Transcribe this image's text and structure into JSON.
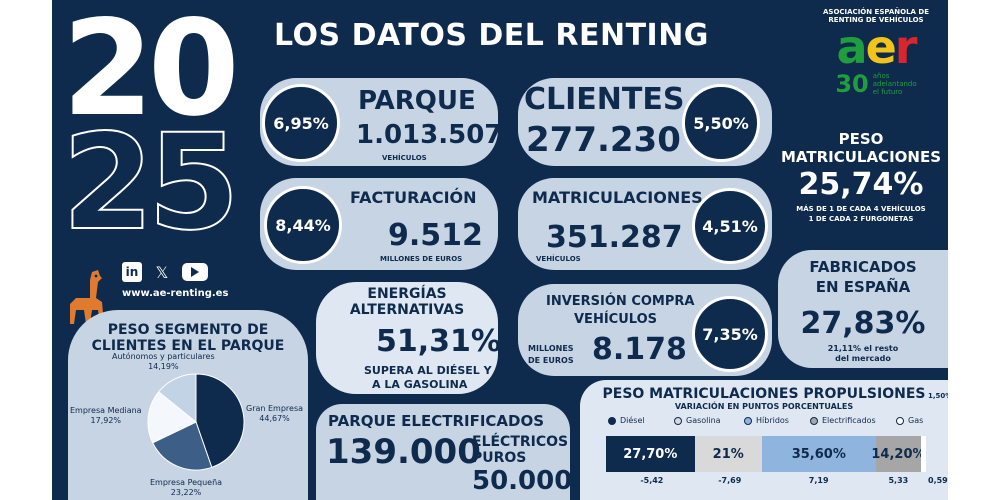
{
  "year_top": "20",
  "year_bottom": "25",
  "title": "LOS DATOS DEL RENTING",
  "logo": {
    "assoc_line1": "ASOCIACIÓN ESPAÑOLA DE",
    "assoc_line2": "RENTING DE VEHÍCULOS",
    "acronym": "aer",
    "anniv_number": "30",
    "anniv_text1": "años",
    "anniv_text2": "adelantando",
    "anniv_text3": "el futuro",
    "colors": {
      "a": "#1f9e3e",
      "e": "#f2c419",
      "r": "#d9262c"
    }
  },
  "social": {
    "icons": [
      "linkedin-icon",
      "x-icon",
      "youtube-icon"
    ],
    "linkedin": "in",
    "x": "𝕏",
    "website": "www.ae-renting.es"
  },
  "parque": {
    "label": "PARQUE",
    "value": "1.013.507",
    "unit": "VEHÍCULOS",
    "pct": "6,95%"
  },
  "clientes": {
    "label": "CLIENTES",
    "value": "277.230",
    "pct": "5,50%"
  },
  "facturacion": {
    "label": "FACTURACIÓN",
    "value": "9.512",
    "unit": "MILLONES DE EUROS",
    "pct": "8,44%"
  },
  "matriculaciones": {
    "label": "MATRICULACIONES",
    "value": "351.287",
    "unit": "VEHÍCULOS",
    "pct": "4,51%"
  },
  "peso_matric": {
    "label1": "PESO",
    "label2": "MATRICULACIONES",
    "value": "25,74%",
    "note1": "MÁS DE 1 DE CADA 4 VEHÍCULOS",
    "note2": "1 DE CADA 2 FURGONETAS"
  },
  "energias": {
    "label1": "ENERGÍAS",
    "label2": "ALTERNATIVAS",
    "value": "51,31%",
    "note1": "SUPERA AL DIÉSEL Y",
    "note2": "A LA GASOLINA"
  },
  "inversion": {
    "label1": "INVERSIÓN COMPRA",
    "label2": "VEHÍCULOS",
    "unit1": "MILLONES",
    "unit2": "DE EUROS",
    "value": "8.178",
    "pct": "7,35%"
  },
  "fabricados": {
    "label1": "FABRICADOS",
    "label2": "EN ESPAÑA",
    "value": "27,83%",
    "note1": "21,11% el resto",
    "note2": "del mercado"
  },
  "segmento": {
    "title1": "PESO SEGMENTO DE",
    "title2": "CLIENTES EN EL PARQUE",
    "slices": [
      {
        "name": "Gran Empresa",
        "pct": "44,67%",
        "value": 44.67,
        "color": "#0e2a4c"
      },
      {
        "name": "Empresa Pequeña",
        "pct": "23,22%",
        "value": 23.22,
        "color": "#3d5e86"
      },
      {
        "name": "Empresa Mediana",
        "pct": "17,92%",
        "value": 17.92,
        "color": "#f4f7fb"
      },
      {
        "name": "Autónomos y particulares",
        "pct": "14,19%",
        "value": 14.19,
        "color": "#c2d3e6"
      }
    ]
  },
  "electrificados": {
    "label": "PARQUE ELECTRIFICADOS",
    "value": "139.000",
    "sub1": "ELÉCTRICOS",
    "sub2": "PUROS",
    "sub_value": "50.000"
  },
  "propulsiones": {
    "title": "PESO MATRICULACIONES PROPULSIONES",
    "subtitle": "VARIACIÓN EN PUNTOS PORCENTUALES",
    "legend": [
      {
        "name": "Diésel",
        "color": "#0e2a4c"
      },
      {
        "name": "Gasolina",
        "color": "#d9d9d9"
      },
      {
        "name": "Híbridos",
        "color": "#8fb4de"
      },
      {
        "name": "Electrificados",
        "color": "#a6a6a6"
      },
      {
        "name": "Gas",
        "color": "#ffffff"
      }
    ],
    "segments": [
      {
        "label": "27,70%",
        "value": 27.7,
        "color": "#0e2a4c",
        "text": "#ffffff",
        "var": "-5,42"
      },
      {
        "label": "21%",
        "value": 21.0,
        "color": "#d9d9d9",
        "text": "#0e2a4c",
        "var": "-7,69"
      },
      {
        "label": "35,60%",
        "value": 35.6,
        "color": "#8fb4de",
        "text": "#0e2a4c",
        "var": "7,19"
      },
      {
        "label": "14,20%",
        "value": 14.2,
        "color": "#a6a6a6",
        "text": "#0e2a4c",
        "var": "5,33"
      },
      {
        "label": "1,50%",
        "value": 1.5,
        "color": "#ffffff",
        "text": "#0e2a4c",
        "var": "0,59"
      }
    ]
  }
}
